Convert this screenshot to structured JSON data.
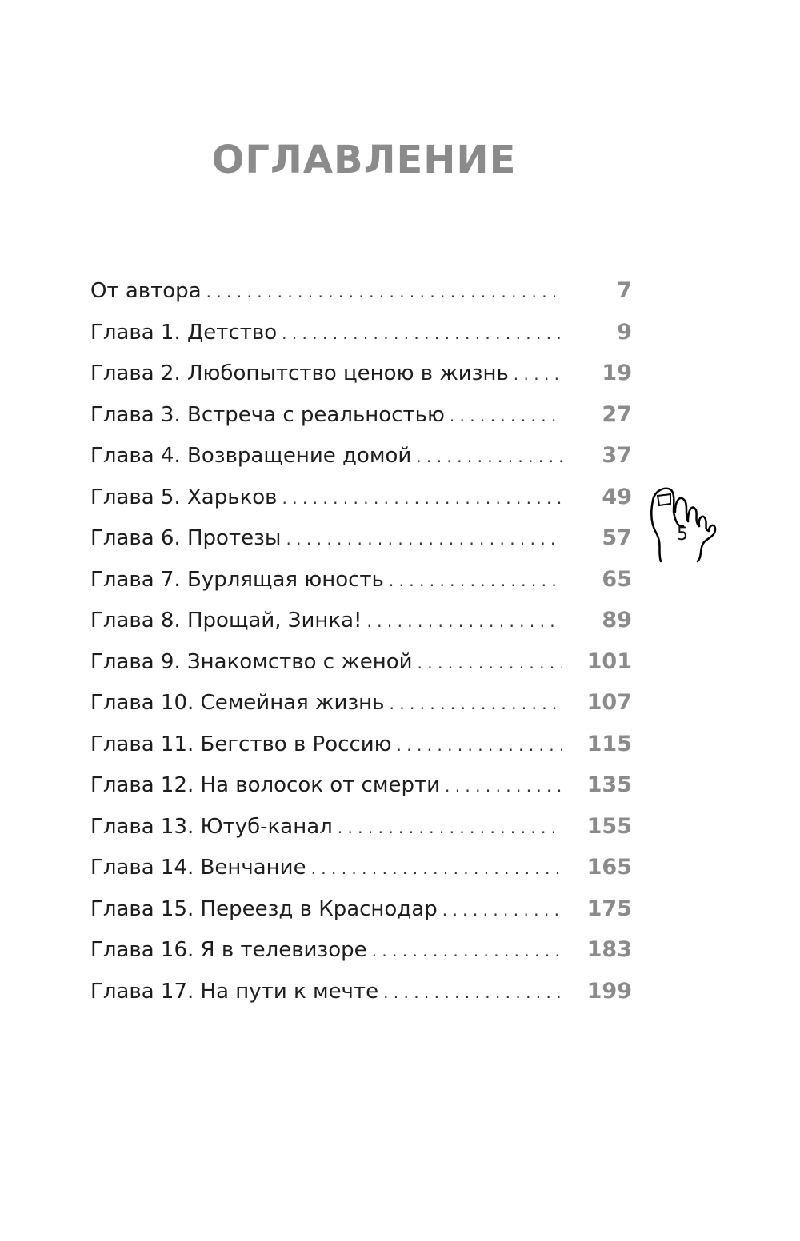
{
  "title": "ОГЛАВЛЕНИЕ",
  "page_number": "5",
  "page_icon": "foot-icon",
  "entries": [
    {
      "label": "От автора",
      "page": "7"
    },
    {
      "label": "Глава 1. Детство",
      "page": "9"
    },
    {
      "label": "Глава 2. Любопытство ценою в жизнь",
      "page": "19"
    },
    {
      "label": "Глава 3. Встреча с реальностью",
      "page": "27"
    },
    {
      "label": "Глава 4. Возвращение домой",
      "page": "37"
    },
    {
      "label": "Глава 5. Харьков",
      "page": "49"
    },
    {
      "label": "Глава 6. Протезы",
      "page": "57"
    },
    {
      "label": "Глава 7. Бурлящая юность",
      "page": "65"
    },
    {
      "label": "Глава 8. Прощай, Зинка!",
      "page": "89"
    },
    {
      "label": "Глава 9. Знакомство с женой",
      "page": "101"
    },
    {
      "label": "Глава 10. Семейная жизнь",
      "page": "107"
    },
    {
      "label": "Глава 11. Бегство в Россию",
      "page": "115"
    },
    {
      "label": "Глава 12. На волосок от смерти",
      "page": "135"
    },
    {
      "label": "Глава 13. Ютуб-канал",
      "page": "155"
    },
    {
      "label": "Глава 14. Венчание",
      "page": "165"
    },
    {
      "label": "Глава 15. Переезд в Краснодар",
      "page": "175"
    },
    {
      "label": "Глава 16. Я в телевизоре",
      "page": "183"
    },
    {
      "label": "Глава 17. На пути к мечте",
      "page": "199"
    }
  ]
}
